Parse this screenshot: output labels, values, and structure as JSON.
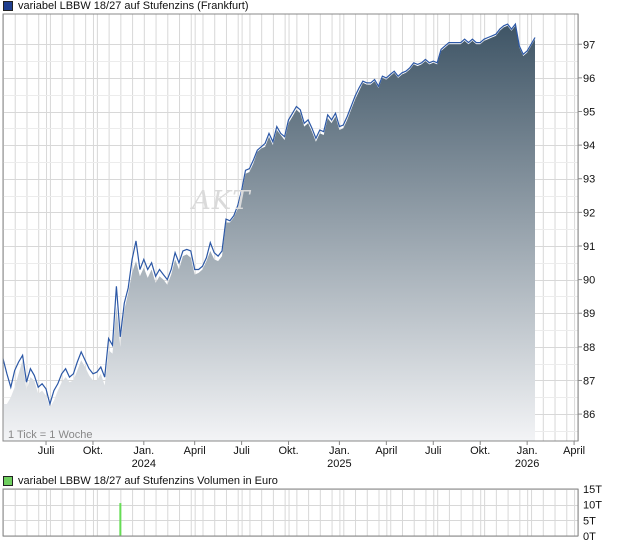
{
  "title": "variabel LBBW 18/27 auf Stufenzins (Frankfurt)",
  "volume_title": "variabel LBBW 18/27 auf Stufenzins Volumen in Euro",
  "tick_note": "1 Tick = 1 Woche",
  "watermark": "AKT",
  "colors": {
    "line": "#2c58a6",
    "area_top": "#3f5566",
    "area_bottom": "#f3f4f6",
    "grid": "#d8d8d8",
    "axis": "#888888",
    "legend_price": "#1f3f8f",
    "legend_volume": "#6fcf5f",
    "volume_bar": "#66dd55"
  },
  "chart_data": [
    {
      "type": "area",
      "title": "variabel LBBW 18/27 auf Stufenzins (Frankfurt)",
      "x_tick_labels": [
        "Juli",
        "Okt.",
        "Jan.\n2024",
        "April",
        "Juli",
        "Okt.",
        "Jan.\n2025",
        "April",
        "Juli",
        "Okt.",
        "Jan.\n2026",
        "April"
      ],
      "y_ticks": [
        86,
        87,
        88,
        89,
        90,
        91,
        92,
        93,
        94,
        95,
        96,
        97
      ],
      "ylim": [
        85.2,
        97.9
      ],
      "x_index_range": [
        0,
        147
      ],
      "x_tick_positions": [
        11,
        23,
        36,
        49,
        61,
        73,
        86,
        98,
        110,
        122,
        134,
        146
      ],
      "grid": true,
      "values": [
        87.65,
        87.2,
        86.8,
        87.3,
        87.55,
        87.75,
        86.95,
        87.35,
        87.15,
        86.8,
        86.9,
        86.75,
        86.3,
        86.7,
        86.9,
        87.2,
        87.35,
        87.1,
        87.2,
        87.55,
        87.85,
        87.6,
        87.35,
        87.2,
        87.25,
        87.4,
        87.1,
        88.25,
        88.05,
        89.8,
        88.3,
        89.3,
        89.75,
        90.6,
        91.15,
        90.3,
        90.6,
        90.3,
        90.5,
        90.1,
        90.3,
        90.15,
        90.0,
        90.3,
        90.8,
        90.5,
        90.85,
        90.9,
        90.85,
        90.3,
        90.3,
        90.4,
        90.65,
        91.1,
        90.8,
        90.7,
        90.85,
        91.8,
        91.75,
        91.9,
        92.2,
        92.65,
        93.25,
        93.3,
        93.55,
        93.85,
        93.95,
        94.05,
        94.35,
        94.1,
        94.55,
        94.35,
        94.25,
        94.75,
        94.95,
        95.15,
        95.05,
        94.65,
        94.75,
        94.5,
        94.2,
        94.45,
        94.4,
        94.9,
        94.75,
        94.95,
        94.55,
        94.6,
        94.85,
        95.15,
        95.45,
        95.7,
        95.9,
        95.85,
        95.85,
        95.95,
        95.75,
        96.05,
        96.0,
        96.1,
        96.2,
        96.05,
        96.15,
        96.2,
        96.3,
        96.45,
        96.4,
        96.45,
        96.55,
        96.45,
        96.5,
        96.45,
        96.85,
        96.95,
        97.05,
        97.05,
        97.05,
        97.05,
        97.15,
        97.05,
        97.15,
        97.05,
        97.05,
        97.15,
        97.2,
        97.25,
        97.3,
        97.45,
        97.55,
        97.6,
        97.45,
        97.6,
        96.95,
        96.7,
        96.8,
        97.0,
        97.2
      ],
      "area_values": [
        86.3,
        86.3,
        86.5,
        86.8,
        87.2,
        87.6,
        86.7,
        87.1,
        87.0,
        86.6,
        86.7,
        86.55,
        86.2,
        86.4,
        86.7,
        86.95,
        87.1,
        86.95,
        87.0,
        87.3,
        87.6,
        87.4,
        87.15,
        87.0,
        87.0,
        87.2,
        86.85,
        87.9,
        87.8,
        89.2,
        88.0,
        89.1,
        89.6,
        90.2,
        90.55,
        90.1,
        90.35,
        90.05,
        90.3,
        89.9,
        90.1,
        90.0,
        89.85,
        90.15,
        90.6,
        90.3,
        90.7,
        90.75,
        90.65,
        90.15,
        90.2,
        90.3,
        90.55,
        90.85,
        90.6,
        90.55,
        90.7,
        91.7,
        91.7,
        91.85,
        92.1,
        92.55,
        93.15,
        93.2,
        93.45,
        93.8,
        93.9,
        93.95,
        94.25,
        94.0,
        94.45,
        94.3,
        94.15,
        94.65,
        94.85,
        95.05,
        94.95,
        94.55,
        94.65,
        94.4,
        94.1,
        94.35,
        94.3,
        94.8,
        94.65,
        94.85,
        94.45,
        94.5,
        94.75,
        95.05,
        95.35,
        95.6,
        95.85,
        95.8,
        95.8,
        95.9,
        95.7,
        96.0,
        95.95,
        96.05,
        96.15,
        96.0,
        96.1,
        96.15,
        96.25,
        96.4,
        96.35,
        96.4,
        96.5,
        96.4,
        96.45,
        96.4,
        96.8,
        96.9,
        97.0,
        97.0,
        97.0,
        97.0,
        97.1,
        97.0,
        97.1,
        97.0,
        97.0,
        97.1,
        97.15,
        97.2,
        97.25,
        97.4,
        97.5,
        97.55,
        97.4,
        97.55,
        96.9,
        96.65,
        96.75,
        96.95,
        97.15
      ]
    },
    {
      "type": "bar",
      "title": "variabel LBBW 18/27 auf Stufenzins Volumen in Euro",
      "y_tick_labels": [
        "15T",
        "10T",
        "5T",
        "0T"
      ],
      "y_ticks": [
        15,
        10,
        5,
        0
      ],
      "ylim": [
        0,
        15
      ],
      "bars": [
        {
          "x_index": 30,
          "value": 10.5
        }
      ]
    }
  ]
}
